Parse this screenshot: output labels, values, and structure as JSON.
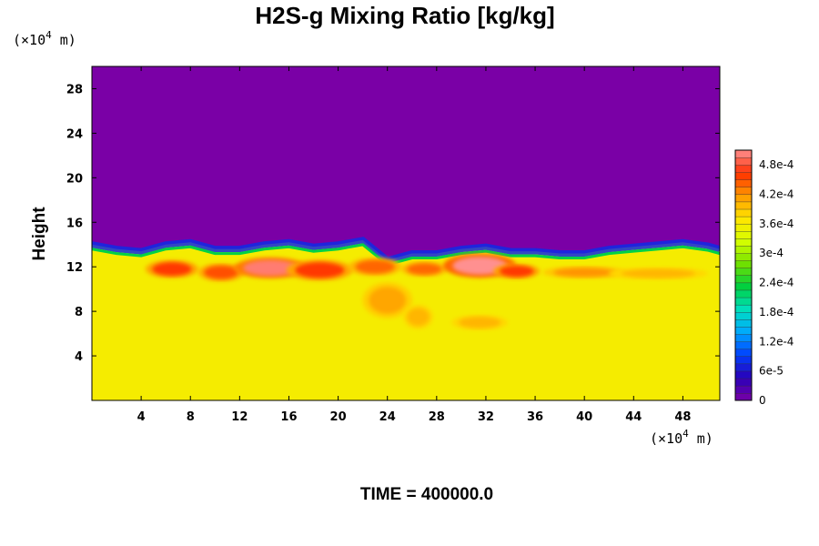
{
  "chart_data": {
    "type": "heatmap",
    "title": "H2S-g Mixing Ratio [kg/kg]",
    "ylabel": "Height",
    "xlabel": "",
    "x_unit_prefix": "(×10",
    "x_unit_exp": "4",
    "x_unit_suffix": " m)",
    "y_unit_prefix": "(×10",
    "y_unit_exp": "4",
    "y_unit_suffix": " m)",
    "xlim": [
      0,
      51
    ],
    "ylim": [
      0,
      30
    ],
    "x_ticks": [
      4,
      8,
      12,
      16,
      20,
      24,
      28,
      32,
      36,
      40,
      44,
      48
    ],
    "y_ticks": [
      4,
      8,
      12,
      16,
      20,
      24,
      28
    ],
    "field": {
      "upper_value": 0,
      "lower_value": 0.00036,
      "boundary_profile": {
        "x": [
          0,
          2,
          4,
          6,
          8,
          10,
          12,
          14,
          16,
          18,
          20,
          22,
          24,
          26,
          28,
          30,
          32,
          34,
          36,
          38,
          40,
          42,
          44,
          46,
          48,
          50,
          51
        ],
        "height": [
          14.0,
          13.6,
          13.4,
          14.0,
          14.2,
          13.6,
          13.6,
          14.0,
          14.2,
          13.8,
          14.0,
          14.4,
          12.6,
          13.2,
          13.2,
          13.6,
          13.8,
          13.4,
          13.4,
          13.2,
          13.2,
          13.6,
          13.8,
          14.0,
          14.2,
          13.9,
          13.6
        ]
      },
      "hotspots": [
        {
          "x": 6.5,
          "y": 11.8,
          "rx": 1.6,
          "ry": 0.6,
          "value": 0.00046
        },
        {
          "x": 10.5,
          "y": 11.5,
          "rx": 1.4,
          "ry": 0.6,
          "value": 0.00045
        },
        {
          "x": 14.5,
          "y": 11.9,
          "rx": 2.2,
          "ry": 0.7,
          "value": 0.0005
        },
        {
          "x": 18.5,
          "y": 11.7,
          "rx": 2.0,
          "ry": 0.7,
          "value": 0.00046
        },
        {
          "x": 23.0,
          "y": 12.0,
          "rx": 1.6,
          "ry": 0.6,
          "value": 0.00044
        },
        {
          "x": 27.0,
          "y": 11.8,
          "rx": 1.4,
          "ry": 0.5,
          "value": 0.00044
        },
        {
          "x": 31.5,
          "y": 12.1,
          "rx": 2.2,
          "ry": 0.8,
          "value": 0.00052
        },
        {
          "x": 34.5,
          "y": 11.6,
          "rx": 1.4,
          "ry": 0.5,
          "value": 0.00046
        },
        {
          "x": 40.0,
          "y": 11.5,
          "rx": 2.5,
          "ry": 0.4,
          "value": 0.00042
        },
        {
          "x": 46.0,
          "y": 11.4,
          "rx": 3.0,
          "ry": 0.4,
          "value": 0.0004
        },
        {
          "x": 24.0,
          "y": 9.0,
          "rx": 1.5,
          "ry": 1.2,
          "value": 0.00041
        },
        {
          "x": 26.5,
          "y": 7.5,
          "rx": 0.9,
          "ry": 0.8,
          "value": 0.0004
        },
        {
          "x": 31.5,
          "y": 7.0,
          "rx": 1.7,
          "ry": 0.5,
          "value": 0.0004
        }
      ]
    },
    "colorbar": {
      "min": 0,
      "max": 0.00051,
      "levels": 34,
      "tick_values": [
        0,
        6e-05,
        0.00012,
        0.00018,
        0.00024,
        0.0003,
        0.00036,
        0.00042,
        0.00048
      ],
      "tick_labels": [
        "0",
        "6e-5",
        "1.2e-4",
        "1.8e-4",
        "2.4e-4",
        "3e-4",
        "3.6e-4",
        "4.2e-4",
        "4.8e-4"
      ],
      "palette": [
        "#7a00a6",
        "#2a00b8",
        "#0040ff",
        "#00a8ff",
        "#00e0c0",
        "#00d040",
        "#70e000",
        "#d6ff00",
        "#ffe600",
        "#ff9a00",
        "#ff3000",
        "#ff9090"
      ]
    },
    "time_label": "TIME = 400000.0"
  }
}
